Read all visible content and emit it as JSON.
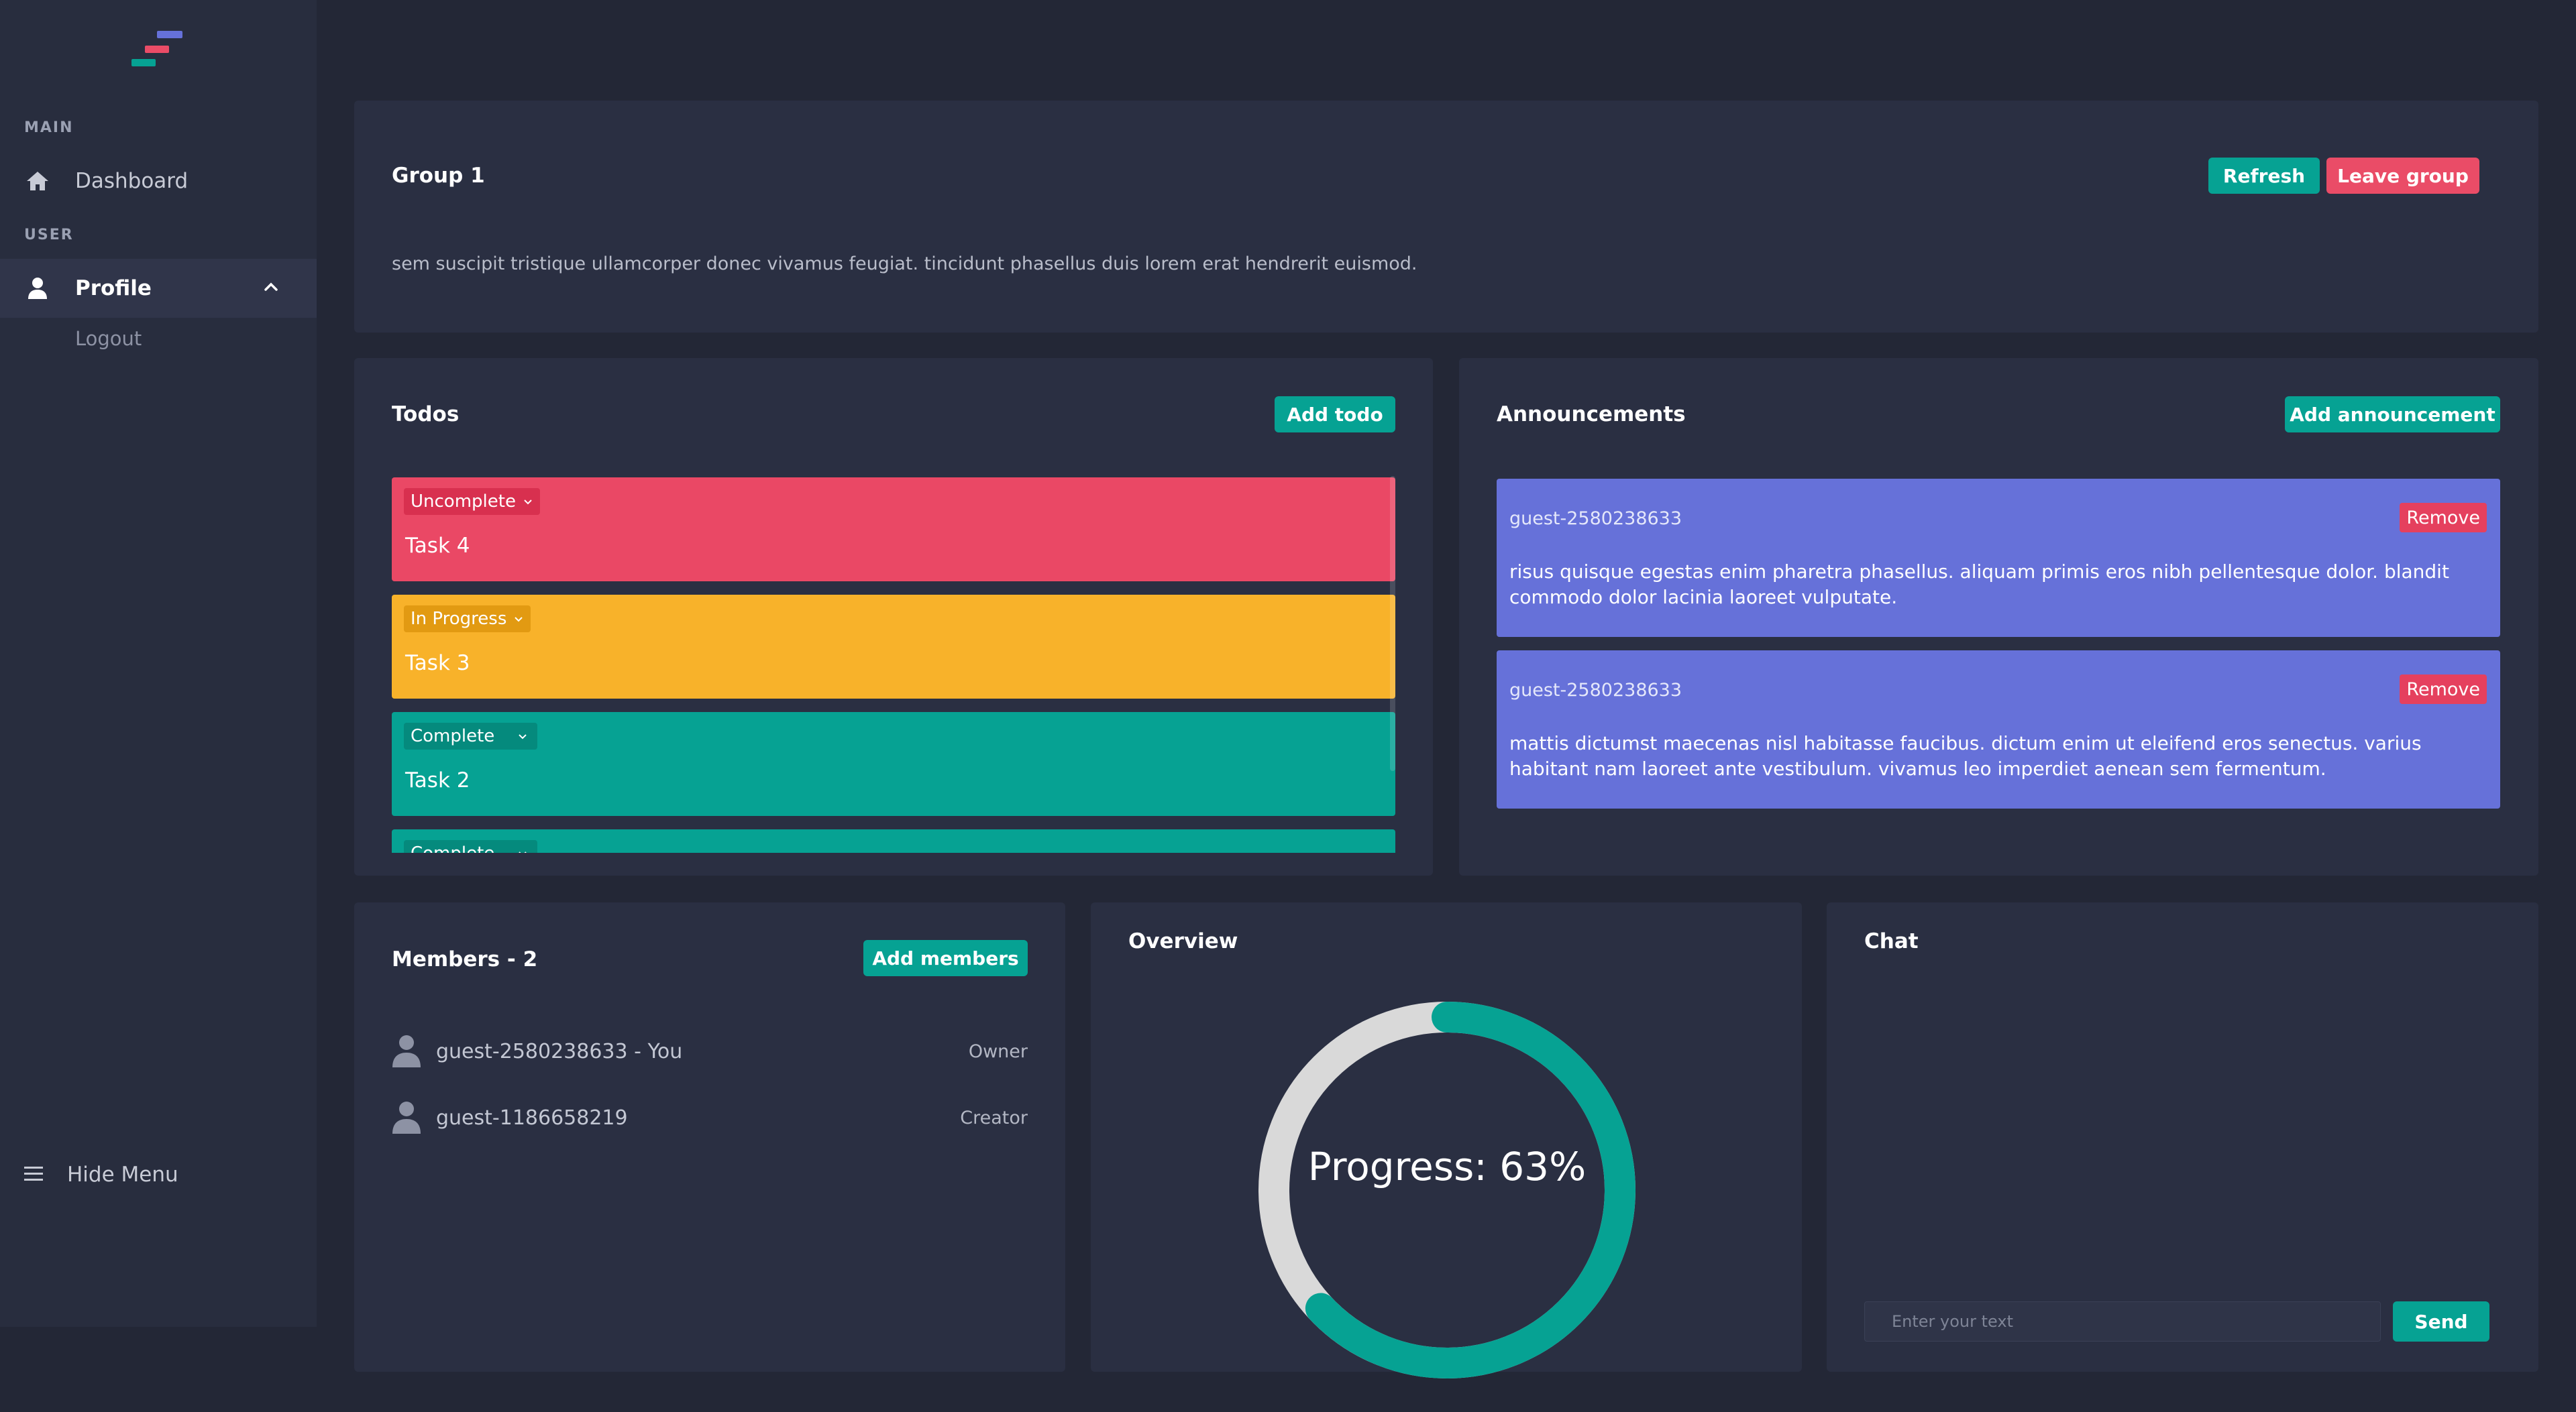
{
  "sidebar": {
    "sections": {
      "main": "MAIN",
      "user": "USER"
    },
    "items": [
      {
        "label": "Dashboard",
        "icon": "home-icon"
      },
      {
        "label": "Profile",
        "icon": "user-icon",
        "active": true
      }
    ],
    "subitems": [
      {
        "label": "Logout"
      }
    ],
    "hide_menu": "Hide Menu",
    "logo_colors": [
      "#6671d9",
      "#ea4c67",
      "#06a293"
    ]
  },
  "group": {
    "title": "Group 1",
    "description": "sem suscipit tristique ullamcorper donec vivamus feugiat. tincidunt phasellus duis lorem erat hendrerit euismod.",
    "refresh_label": "Refresh",
    "leave_label": "Leave group"
  },
  "todos": {
    "title": "Todos",
    "add_label": "Add todo",
    "items": [
      {
        "status": "Uncomplete",
        "label": "Task 4",
        "color": "#ea4865",
        "badge_color": "#d8304f"
      },
      {
        "status": "In Progress",
        "label": "Task 3",
        "color": "#f8b22a",
        "badge_color": "#e29a12"
      },
      {
        "status": "Complete",
        "label": "Task 2",
        "color": "#06a293",
        "badge_color": "#058a7d"
      },
      {
        "status": "Complete",
        "label": "",
        "color": "#06a293",
        "badge_color": "#058a7d"
      }
    ]
  },
  "announcements": {
    "title": "Announcements",
    "add_label": "Add announcement",
    "items": [
      {
        "author": "guest-2580238633",
        "remove_label": "Remove",
        "body": "risus quisque egestas enim pharetra phasellus. aliquam primis eros nibh pellentesque dolor. blandit commodo dolor lacinia laoreet vulputate."
      },
      {
        "author": "guest-2580238633",
        "remove_label": "Remove",
        "body": "mattis dictumst maecenas nisl habitasse faucibus. dictum enim ut eleifend eros senectus. varius habitant nam laoreet ante vestibulum. vivamus leo imperdiet aenean sem fermentum."
      }
    ]
  },
  "members": {
    "title": "Members - 2",
    "add_label": "Add members",
    "items": [
      {
        "name": "guest-2580238633 - You",
        "role": "Owner"
      },
      {
        "name": "guest-1186658219",
        "role": "Creator"
      }
    ]
  },
  "overview": {
    "title": "Overview",
    "progress_text": "Progress: 63%",
    "progress": 0.63,
    "colors": {
      "fill": "#06a293",
      "track": "#d9d9d9"
    }
  },
  "chat": {
    "title": "Chat",
    "input_placeholder": "Enter your text",
    "send_label": "Send"
  }
}
